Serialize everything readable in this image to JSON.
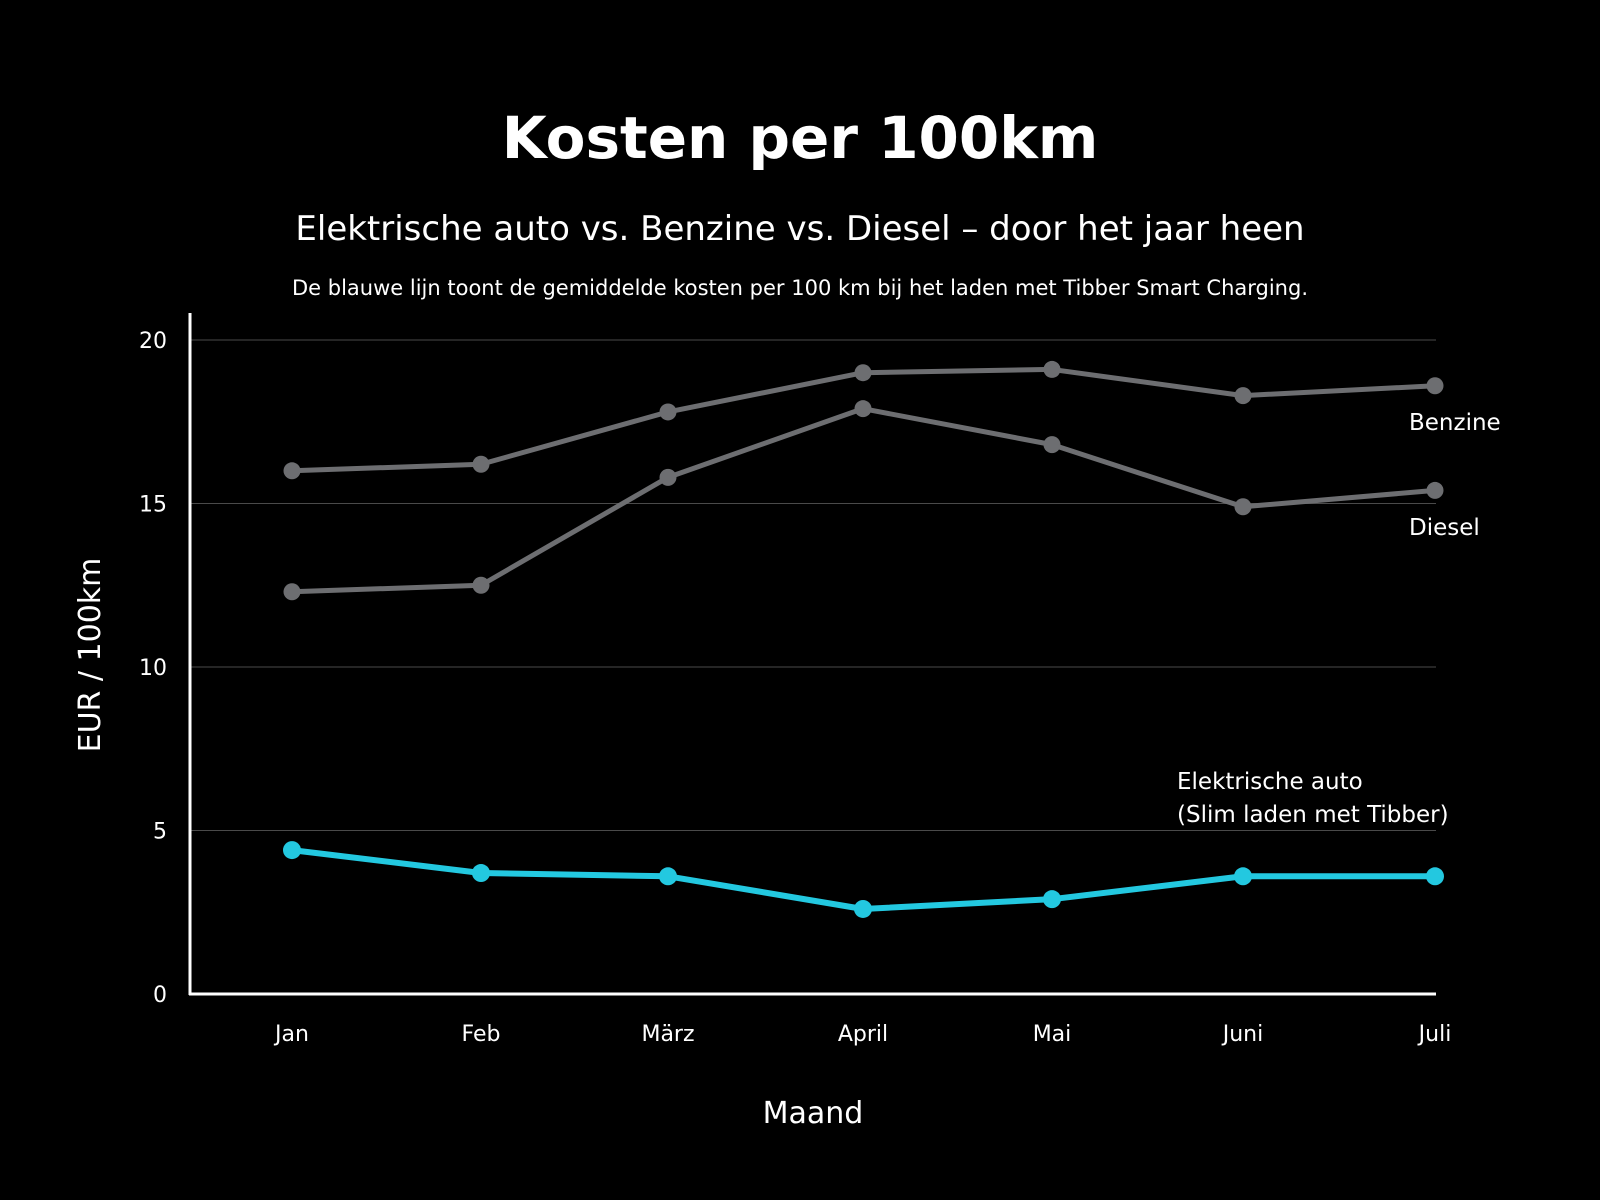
{
  "chart_data": {
    "type": "line",
    "title": "Kosten per 100km",
    "subtitle": "Elektrische auto vs. Benzine vs. Diesel – door het jaar heen",
    "note": "De blauwe lijn toont de gemiddelde kosten per 100 km bij het laden met Tibber Smart Charging.",
    "xlabel": "Maand",
    "ylabel": "EUR / 100km",
    "categories": [
      "Jan",
      "Feb",
      "März",
      "April",
      "Mai",
      "Juni",
      "Juli"
    ],
    "ylim": [
      0,
      20
    ],
    "yticks": [
      "0",
      "5",
      "10",
      "15",
      "20"
    ],
    "grid": true,
    "series": [
      {
        "name": "Benzine",
        "values": [
          16.0,
          16.2,
          17.8,
          19.0,
          19.1,
          18.3,
          18.6
        ],
        "color": "#6d6e71"
      },
      {
        "name": "Diesel",
        "values": [
          12.3,
          12.5,
          15.8,
          17.9,
          16.8,
          14.9,
          15.4
        ],
        "color": "#6d6e71"
      },
      {
        "name": "Elektrische auto",
        "name_line2": "(Slim laden met Tibber)",
        "values": [
          4.4,
          3.7,
          3.6,
          2.6,
          2.9,
          3.6,
          3.6
        ],
        "color": "#23c8e0"
      }
    ]
  }
}
